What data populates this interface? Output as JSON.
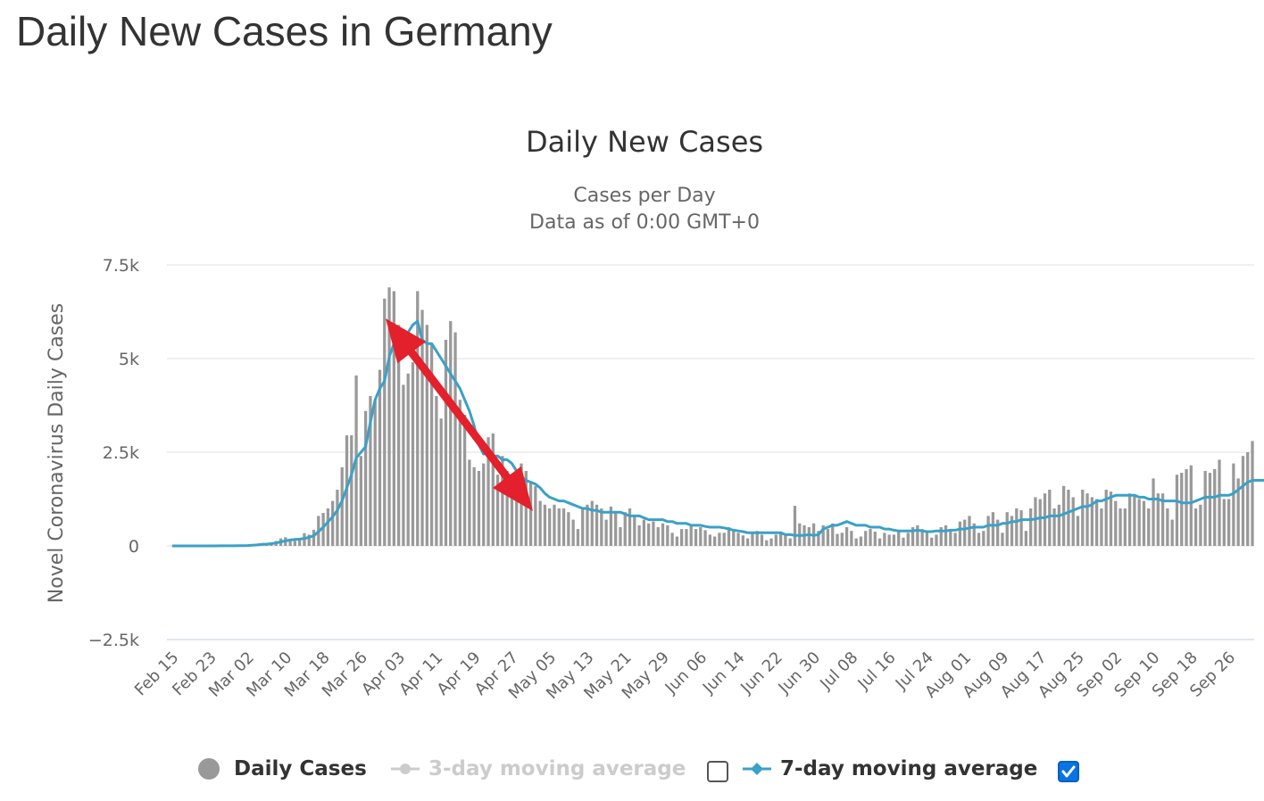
{
  "page_title": "Daily New Cases in Germany",
  "colors": {
    "bar": "#999999",
    "line": "#3aa1c7",
    "arrow": "#e3202b",
    "grid": "#e6e6e6",
    "zero_axis": "#ccd6eb",
    "checkbox_checked": "#0b74e5"
  },
  "legend": {
    "items": [
      {
        "label": "Daily Cases",
        "icon": "circle-icon",
        "enabled": true
      },
      {
        "label": "3-day moving average",
        "icon": "line-dot-icon",
        "enabled": false,
        "checked": false
      },
      {
        "label": "7-day moving average",
        "icon": "line-diamond-icon",
        "enabled": true,
        "checked": true
      }
    ]
  },
  "chart_data": {
    "type": "bar",
    "title": "Daily New Cases",
    "subtitle_lines": [
      "Cases per Day",
      "Data as of 0:00 GMT+0"
    ],
    "ylabel": "Novel Coronavirus Daily Cases",
    "ylim": [
      -2500,
      7500
    ],
    "y_ticks": [
      7500,
      5000,
      2500,
      0,
      -2500
    ],
    "y_tick_labels": [
      "7.5k",
      "5k",
      "2.5k",
      "0",
      "−2.5k"
    ],
    "grid": true,
    "legend_position": "bottom-center",
    "x_tick_labels": [
      "Feb 15",
      "Feb 23",
      "Mar 02",
      "Mar 10",
      "Mar 18",
      "Mar 26",
      "Apr 03",
      "Apr 11",
      "Apr 19",
      "Apr 27",
      "May 05",
      "May 13",
      "May 21",
      "May 29",
      "Jun 06",
      "Jun 14",
      "Jun 22",
      "Jun 30",
      "Jul 08",
      "Jul 16",
      "Jul 24",
      "Aug 01",
      "Aug 09",
      "Aug 17",
      "Aug 25",
      "Sep 02",
      "Sep 10",
      "Sep 18",
      "Sep 26"
    ],
    "x_start": "Feb 15",
    "series": [
      {
        "name": "Daily Cases",
        "type": "bar",
        "values": [
          0,
          0,
          0,
          0,
          0,
          0,
          0,
          0,
          0,
          0,
          2,
          2,
          2,
          3,
          3,
          10,
          20,
          30,
          40,
          70,
          50,
          80,
          130,
          200,
          230,
          180,
          140,
          170,
          340,
          300,
          430,
          800,
          880,
          1000,
          1200,
          1500,
          2100,
          2950,
          2950,
          4550,
          2400,
          3600,
          4000,
          3900,
          4700,
          6600,
          6900,
          6800,
          5900,
          4300,
          4600,
          4900,
          6800,
          6300,
          5900,
          5400,
          4000,
          3400,
          5500,
          6000,
          5700,
          3900,
          3500,
          2300,
          2100,
          2000,
          2200,
          2900,
          3000,
          1900,
          2400,
          2000,
          1600,
          1200,
          2200,
          2000,
          1700,
          1600,
          1200,
          1100,
          1000,
          1100,
          1000,
          1000,
          900,
          700,
          450,
          1000,
          1100,
          1200,
          1100,
          1000,
          700,
          1050,
          900,
          500,
          900,
          1000,
          800,
          550,
          700,
          600,
          650,
          500,
          600,
          550,
          350,
          250,
          450,
          450,
          550,
          450,
          500,
          420,
          300,
          250,
          350,
          350,
          500,
          400,
          350,
          280,
          200,
          350,
          400,
          300,
          150,
          200,
          300,
          350,
          280,
          200,
          1070,
          600,
          550,
          500,
          600,
          400,
          550,
          450,
          600,
          320,
          350,
          500,
          400,
          200,
          250,
          400,
          450,
          380,
          200,
          350,
          300,
          300,
          420,
          220,
          350,
          500,
          550,
          450,
          380,
          220,
          300,
          500,
          550,
          420,
          350,
          650,
          700,
          800,
          600,
          350,
          400,
          800,
          900,
          700,
          350,
          900,
          800,
          1000,
          950,
          400,
          1000,
          1300,
          1250,
          1400,
          1500,
          1000,
          1100,
          1600,
          1500,
          1300,
          800,
          1500,
          1400,
          1300,
          1250,
          1000,
          1500,
          1450,
          1200,
          1000,
          1000,
          1400,
          1350,
          1250,
          1200,
          1000,
          1800,
          1400,
          1400,
          1000,
          700,
          1900,
          1950,
          2050,
          2150,
          1000,
          1100,
          2000,
          1950,
          2050,
          2300,
          1250,
          1250,
          2200,
          1800,
          2400,
          2500,
          2800
        ]
      },
      {
        "name": "7-day moving average",
        "type": "line",
        "values": [
          0,
          0,
          0,
          0,
          0,
          0,
          0,
          0,
          0,
          0,
          2,
          2,
          2,
          3,
          4,
          7,
          10,
          17,
          26,
          40,
          48,
          59,
          78,
          107,
          134,
          156,
          171,
          182,
          195,
          232,
          270,
          380,
          500,
          640,
          780,
          950,
          1200,
          1550,
          1900,
          2350,
          2500,
          2650,
          3300,
          3900,
          4200,
          4400,
          5050,
          5400,
          5400,
          5500,
          5700,
          5900,
          6000,
          5500,
          5400,
          5400,
          5200,
          5000,
          4800,
          4600,
          4400,
          4200,
          3900,
          3600,
          3200,
          2700,
          2450,
          2500,
          2400,
          2400,
          2300,
          2300,
          2200,
          2000,
          1850,
          1750,
          1700,
          1650,
          1550,
          1400,
          1300,
          1250,
          1200,
          1200,
          1150,
          1100,
          1050,
          1000,
          1000,
          950,
          950,
          900,
          900,
          900,
          900,
          900,
          850,
          800,
          800,
          800,
          750,
          700,
          700,
          700,
          700,
          650,
          650,
          600,
          600,
          600,
          550,
          550,
          550,
          520,
          500,
          500,
          500,
          480,
          450,
          420,
          400,
          380,
          350,
          350,
          350,
          350,
          350,
          350,
          350,
          350,
          300,
          300,
          280,
          280,
          280,
          300,
          280,
          300,
          450,
          500,
          550,
          550,
          600,
          650,
          600,
          550,
          550,
          550,
          500,
          500,
          500,
          450,
          450,
          420,
          400,
          400,
          400,
          400,
          420,
          400,
          380,
          380,
          400,
          400,
          400,
          420,
          420,
          450,
          450,
          480,
          500,
          500,
          500,
          550,
          550,
          550,
          600,
          600,
          650,
          650,
          700,
          700,
          700,
          720,
          750,
          750,
          800,
          800,
          800,
          850,
          900,
          950,
          1000,
          1050,
          1050,
          1100,
          1200,
          1200,
          1250,
          1300,
          1350,
          1350,
          1350,
          1350,
          1350,
          1300,
          1300,
          1250,
          1250,
          1250,
          1200,
          1200,
          1200,
          1200,
          1150,
          1150,
          1150,
          1200,
          1250,
          1300,
          1300,
          1300,
          1350,
          1350,
          1350,
          1400,
          1500,
          1600,
          1700,
          1750,
          1750,
          1750,
          1750,
          1800,
          1800,
          1800,
          1850,
          1900,
          1950,
          2050,
          2150
        ]
      }
    ]
  }
}
